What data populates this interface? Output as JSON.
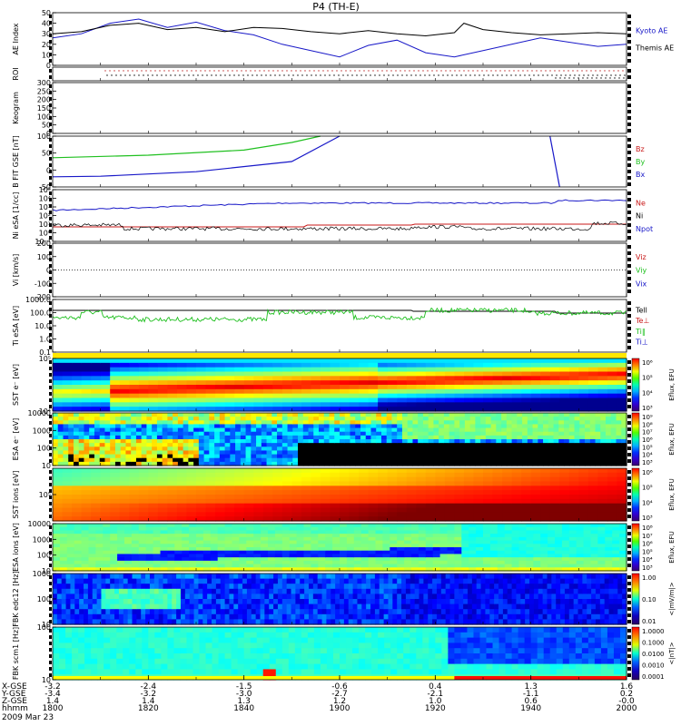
{
  "title": "P4 (TH-E)",
  "date_label": "2009 Mar 23",
  "colors": {
    "kyoto": "#1818c8",
    "themis": "#000000",
    "bz": "#c81818",
    "by": "#20c020",
    "bx": "#1818c8",
    "te": "#c81818",
    "ti": "#20c020",
    "ti_perp": "#1818c8"
  },
  "chart_data": [
    {
      "type": "line",
      "name": "ae",
      "ylabel": "AE Index",
      "ylim": [
        0,
        50
      ],
      "yticks": [
        "0",
        "10",
        "20",
        "30",
        "40",
        "50"
      ],
      "x": [
        1800,
        1806,
        1812,
        1818,
        1824,
        1830,
        1836,
        1842,
        1848,
        1854,
        1900,
        1906,
        1912,
        1918,
        1924,
        1926,
        1930,
        1936,
        1942,
        1948,
        1954,
        2000
      ],
      "series": [
        {
          "name": "Kyoto AE",
          "color": "kyoto",
          "values": [
            26,
            30,
            40,
            44,
            36,
            41,
            33,
            29,
            20,
            14,
            8,
            19,
            24,
            12,
            8,
            10,
            14,
            20,
            26,
            22,
            18,
            20
          ]
        },
        {
          "name": "Themis AE",
          "color": "themis",
          "values": [
            30,
            32,
            38,
            40,
            34,
            36,
            32,
            36,
            35,
            32,
            30,
            33,
            30,
            28,
            31,
            40,
            34,
            31,
            29,
            30,
            31,
            30
          ]
        }
      ],
      "legend": [
        "Kyoto AE",
        "Themis AE"
      ]
    },
    {
      "type": "scatter",
      "name": "roi",
      "ylabel": "ROI"
    },
    {
      "type": "heatmap",
      "name": "keogram",
      "ylabel": "Keogram",
      "ylim": [
        0,
        300
      ],
      "yticks": [
        "0",
        "50",
        "100",
        "150",
        "200",
        "250",
        "300"
      ]
    },
    {
      "type": "line",
      "name": "bfit",
      "ylabel": "B FIT GSE [nT]",
      "ylim": [
        -100,
        100
      ],
      "yticks": [
        "-50",
        "0",
        "50",
        "100"
      ],
      "legend": [
        "Bz",
        "By",
        "Bx"
      ],
      "series": [
        {
          "name": "By",
          "color": "by",
          "x": [
            1800,
            1820,
            1840,
            1850,
            1856
          ],
          "values": [
            15,
            25,
            45,
            75,
            100
          ]
        },
        {
          "name": "Bx",
          "color": "bx",
          "x": [
            1800,
            1810,
            1830,
            1850,
            1900
          ],
          "values": [
            -60,
            -58,
            -40,
            0,
            100
          ]
        },
        {
          "name": "Bx",
          "color": "bx",
          "x": [
            1944,
            1946
          ],
          "values": [
            100,
            -100
          ]
        }
      ]
    },
    {
      "type": "line",
      "name": "density",
      "ylabel": "Ni eSA [1/cc]",
      "yticks": [
        "10⁻¹",
        "10⁰",
        "10¹",
        "10²",
        "10³",
        "10⁴",
        "10⁵"
      ],
      "legend": [
        "Ne",
        "Ni",
        "Npot"
      ],
      "series": [
        {
          "name": "Ne",
          "color": "te"
        },
        {
          "name": "Ni",
          "color": "bx"
        },
        {
          "name": "Npot",
          "color": "themis"
        }
      ]
    },
    {
      "type": "line",
      "name": "vi",
      "ylabel": "Vi [km/s]",
      "yticks": [
        "-200",
        "-100",
        "0",
        "100",
        "200"
      ],
      "legend": [
        "Viz",
        "Viy",
        "Vix"
      ]
    },
    {
      "type": "line",
      "name": "temp",
      "ylabel": "Ti eSA [eV]",
      "yticks": [
        "0.1",
        "1.0",
        "10.0",
        "100.0",
        "1000.0"
      ],
      "legend": [
        "Tell",
        "Te⊥",
        "Ti‖",
        "Ti⊥"
      ]
    },
    {
      "type": "heatmap",
      "name": "sst-e",
      "ylabel": "SST e⁻ [eV]",
      "yticks": [
        "10⁴",
        "10⁵"
      ],
      "colorbar_label": "Eflux, EFU",
      "colorbar_ticks": [
        "10⁶",
        "10⁵",
        "10⁴",
        "10³"
      ]
    },
    {
      "type": "heatmap",
      "name": "esa-e",
      "ylabel": "ESA e⁻ [eV]",
      "yticks": [
        "10",
        "100",
        "1000",
        "10000"
      ],
      "colorbar_label": "Eflux, EFU",
      "colorbar_ticks": [
        "10⁹",
        "10⁸",
        "10⁷",
        "10⁶",
        "10⁵",
        "10⁴",
        "10³"
      ]
    },
    {
      "type": "heatmap",
      "name": "sst-i",
      "ylabel": "SST ions [eV]",
      "yticks": [
        "10⁵"
      ],
      "colorbar_label": "Eflux, EFU",
      "colorbar_ticks": [
        "10⁶",
        "10⁵",
        "10⁴",
        "10³"
      ]
    },
    {
      "type": "heatmap",
      "name": "esa-i",
      "ylabel": "ESA ions [eV]",
      "yticks": [
        "10",
        "100",
        "1000",
        "10000"
      ],
      "colorbar_label": "Eflux, EFU",
      "colorbar_ticks": [
        "10⁸",
        "10⁷",
        "10⁶",
        "10⁵",
        "10⁴",
        "10³"
      ]
    },
    {
      "type": "heatmap",
      "name": "fbk1",
      "ylabel": "FBK edc12 [Hz]",
      "yticks": [
        "10",
        "100",
        "1000"
      ],
      "colorbar_label": "<|mV/m|>",
      "colorbar_ticks": [
        "1.00",
        "0.10",
        "0.01"
      ]
    },
    {
      "type": "heatmap",
      "name": "fbk2",
      "ylabel": "FBK scm1 [Hz]",
      "yticks": [
        "10",
        "100"
      ],
      "colorbar_label": "<|nT|>",
      "colorbar_ticks": [
        "1.0000",
        "0.1000",
        "0.0100",
        "0.0010",
        "0.0001"
      ]
    }
  ],
  "xaxis": {
    "row_labels": [
      "X-GSE",
      "Y-GSE",
      "Z-GSE",
      "hhmm"
    ],
    "ticks": [
      {
        "x": "-3.2",
        "y": "-3.4",
        "z": "1.4",
        "t": "1800"
      },
      {
        "x": "-2.4",
        "y": "-3.2",
        "z": "1.4",
        "t": "1820"
      },
      {
        "x": "-1.5",
        "y": "-3.0",
        "z": "1.3",
        "t": "1840"
      },
      {
        "x": "-0.6",
        "y": "-2.7",
        "z": "1.2",
        "t": "1900"
      },
      {
        "x": "0.4",
        "y": "-2.1",
        "z": "1.0",
        "t": "1920"
      },
      {
        "x": "1.3",
        "y": "-1.1",
        "z": "0.6",
        "t": "1940"
      },
      {
        "x": "1.6",
        "y": "0.2",
        "z": "-0.0",
        "t": "2000"
      }
    ]
  }
}
